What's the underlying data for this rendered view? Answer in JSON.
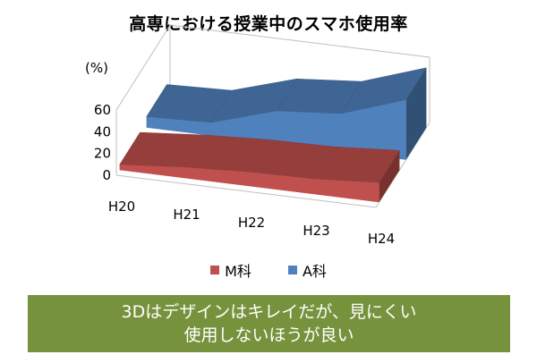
{
  "title": "高専における授業中のスマホ使用率",
  "chart_data": {
    "type": "area",
    "style": "3d",
    "title": "高専における授業中のスマホ使用率",
    "ylabel": "(%)",
    "categories": [
      "H20",
      "H21",
      "H22",
      "H23",
      "H24"
    ],
    "yticks": [
      0,
      20,
      40,
      60
    ],
    "ylim": [
      0,
      60
    ],
    "series": [
      {
        "name": "M科",
        "values": [
          5,
          10,
          13,
          14,
          18
        ],
        "color": "#c0504d"
      },
      {
        "name": "A科",
        "values": [
          10,
          12,
          30,
          35,
          55
        ],
        "color": "#4f81bd"
      }
    ],
    "legend_position": "bottom",
    "grid": false
  },
  "note": {
    "line1": "3Dはデザインはキレイだが、見にくい",
    "line2": "使用しないほうが良い",
    "bg_color": "#77923c"
  }
}
